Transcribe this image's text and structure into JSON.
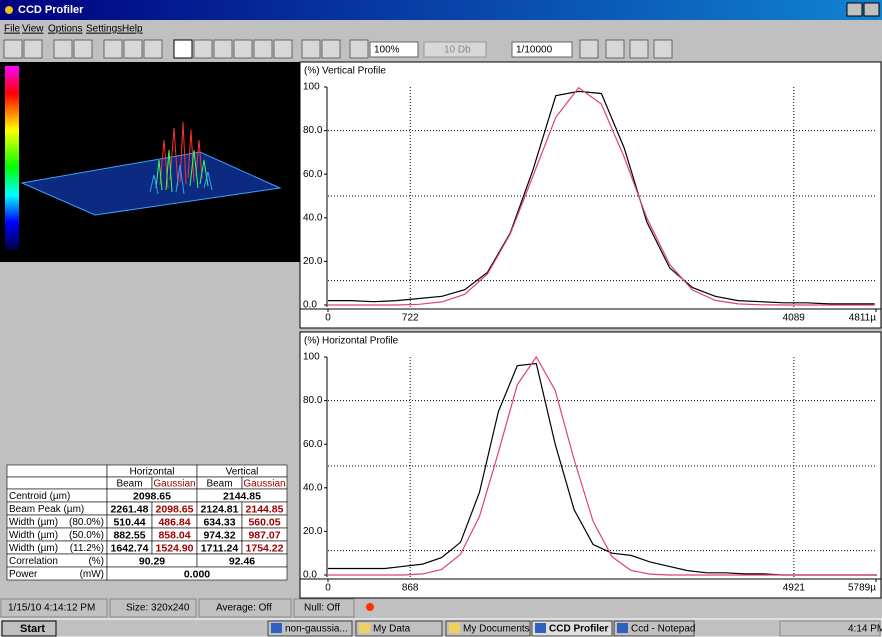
{
  "window": {
    "title": "CCD Profiler",
    "menu": [
      "File",
      "View",
      "Options",
      "Settings",
      "Help"
    ]
  },
  "toolbar": {
    "zoom": "100%",
    "attenuation": "10 Db",
    "exposure": "1/10000"
  },
  "chart_data": [
    {
      "type": "line",
      "title": "Vertical Profile",
      "y_label": "(%)",
      "x": [
        0,
        200,
        400,
        600,
        800,
        1000,
        1200,
        1400,
        1600,
        1800,
        2000,
        2200,
        2400,
        2600,
        2800,
        3000,
        3200,
        3400,
        3600,
        3800,
        4000,
        4200,
        4400,
        4600,
        4800
      ],
      "series": [
        {
          "color": "#000000",
          "values": [
            2,
            2,
            1.5,
            2,
            3,
            4,
            7,
            15,
            33,
            62,
            96,
            98,
            97,
            72,
            38,
            17,
            8,
            4,
            2,
            1.5,
            1,
            1,
            0.5,
            0.5,
            0.5
          ]
        },
        {
          "color": "#e0407a",
          "values": [
            0,
            0,
            0,
            0,
            0.3,
            1.4,
            4.9,
            14.2,
            32.5,
            59.2,
            86.1,
            99.7,
            92.1,
            67.8,
            39.8,
            18.6,
            6.9,
            2.1,
            0.5,
            0.1,
            0,
            0,
            0,
            0,
            0
          ]
        }
      ],
      "xlim": [
        0,
        4811
      ],
      "xticks": [
        0,
        722,
        4089,
        {
          "value": 4811,
          "label": "4811µ"
        }
      ],
      "ylim": [
        0,
        100
      ],
      "yticks": [
        {
          "value": 0,
          "label": "0.0"
        },
        {
          "value": 20,
          "label": "20.0"
        },
        {
          "value": 40,
          "label": "40.0"
        },
        {
          "value": 60,
          "label": "60.0"
        },
        {
          "value": 80,
          "label": "80.0"
        },
        100
      ],
      "clip_levels": [
        80,
        50,
        11.2
      ]
    },
    {
      "type": "line",
      "title": "Horizontal Profile",
      "y_label": "(%)",
      "x": [
        0,
        200,
        400,
        600,
        800,
        1000,
        1200,
        1400,
        1600,
        1800,
        2000,
        2200,
        2400,
        2600,
        2800,
        3000,
        3200,
        3400,
        3600,
        3800,
        4000,
        4200,
        4400,
        4600,
        4800,
        5000,
        5200,
        5400,
        5600,
        5800
      ],
      "series": [
        {
          "color": "#000000",
          "values": [
            3,
            3,
            3,
            3,
            4,
            5,
            8,
            15,
            38,
            75,
            96,
            97,
            60,
            30,
            14,
            10,
            9,
            6,
            4,
            2,
            1,
            1,
            0.5,
            0.5,
            0,
            0,
            0,
            0,
            0,
            0
          ]
        },
        {
          "color": "#e0407a",
          "values": [
            0,
            0,
            0,
            0,
            0,
            0.5,
            2.5,
            9.5,
            26.9,
            56.3,
            87.3,
            100,
            84.7,
            53,
            24.6,
            8.4,
            2.1,
            0.4,
            0,
            0,
            0,
            0,
            0,
            0,
            0,
            0,
            0,
            0,
            0,
            0
          ]
        }
      ],
      "xlim": [
        0,
        5789
      ],
      "xticks": [
        0,
        868,
        4921,
        {
          "value": 5789,
          "label": "5789µ"
        }
      ],
      "ylim": [
        0,
        100
      ],
      "yticks": [
        {
          "value": 0,
          "label": "0.0"
        },
        {
          "value": 20,
          "label": "20.0"
        },
        {
          "value": 40,
          "label": "40.0"
        },
        {
          "value": 60,
          "label": "60.0"
        },
        {
          "value": 80,
          "label": "80.0"
        },
        100
      ],
      "clip_levels": [
        80,
        50,
        11.2
      ]
    }
  ],
  "results_table": {
    "group_headers": [
      "Horizontal",
      "Vertical"
    ],
    "sub_headers": [
      "Beam",
      "Gaussian",
      "Beam",
      "Gaussian"
    ],
    "rows": [
      {
        "label": "Centroid (µm)",
        "cells": [
          "2098.65",
          "2144.85"
        ]
      },
      {
        "label": "Beam Peak (µm)",
        "cells": [
          "2261.48",
          "2098.65",
          "2124.81",
          "2144.85"
        ]
      },
      {
        "label": "Width (µm)",
        "qualifier": "(80.0%)",
        "cells": [
          "510.44",
          "486.84",
          "634.33",
          "560.05"
        ]
      },
      {
        "label": "Width (µm)",
        "qualifier": "(50.0%)",
        "cells": [
          "882.55",
          "858.04",
          "974.32",
          "987.07"
        ]
      },
      {
        "label": "Width (µm)",
        "qualifier": "(11.2%)",
        "cells": [
          "1642.74",
          "1524.90",
          "1711.24",
          "1754.22"
        ]
      },
      {
        "label": "Correlation",
        "qualifier": "(%)",
        "cells": [
          "90.29",
          "92.46"
        ]
      },
      {
        "label": "Power",
        "qualifier": "(mW)",
        "cells": [
          "0.000"
        ]
      }
    ]
  },
  "status_bar": [
    "1/15/10 4:14:12 PM",
    "Size: 320x240",
    "Average: Off",
    "Null: Off"
  ],
  "taskbar": {
    "start": "Start",
    "tasks": [
      "non-gaussia...",
      "My Data",
      "My Documents",
      "CCD Profiler",
      "Ccd - Notepad"
    ],
    "clock": "4:14 PM"
  }
}
